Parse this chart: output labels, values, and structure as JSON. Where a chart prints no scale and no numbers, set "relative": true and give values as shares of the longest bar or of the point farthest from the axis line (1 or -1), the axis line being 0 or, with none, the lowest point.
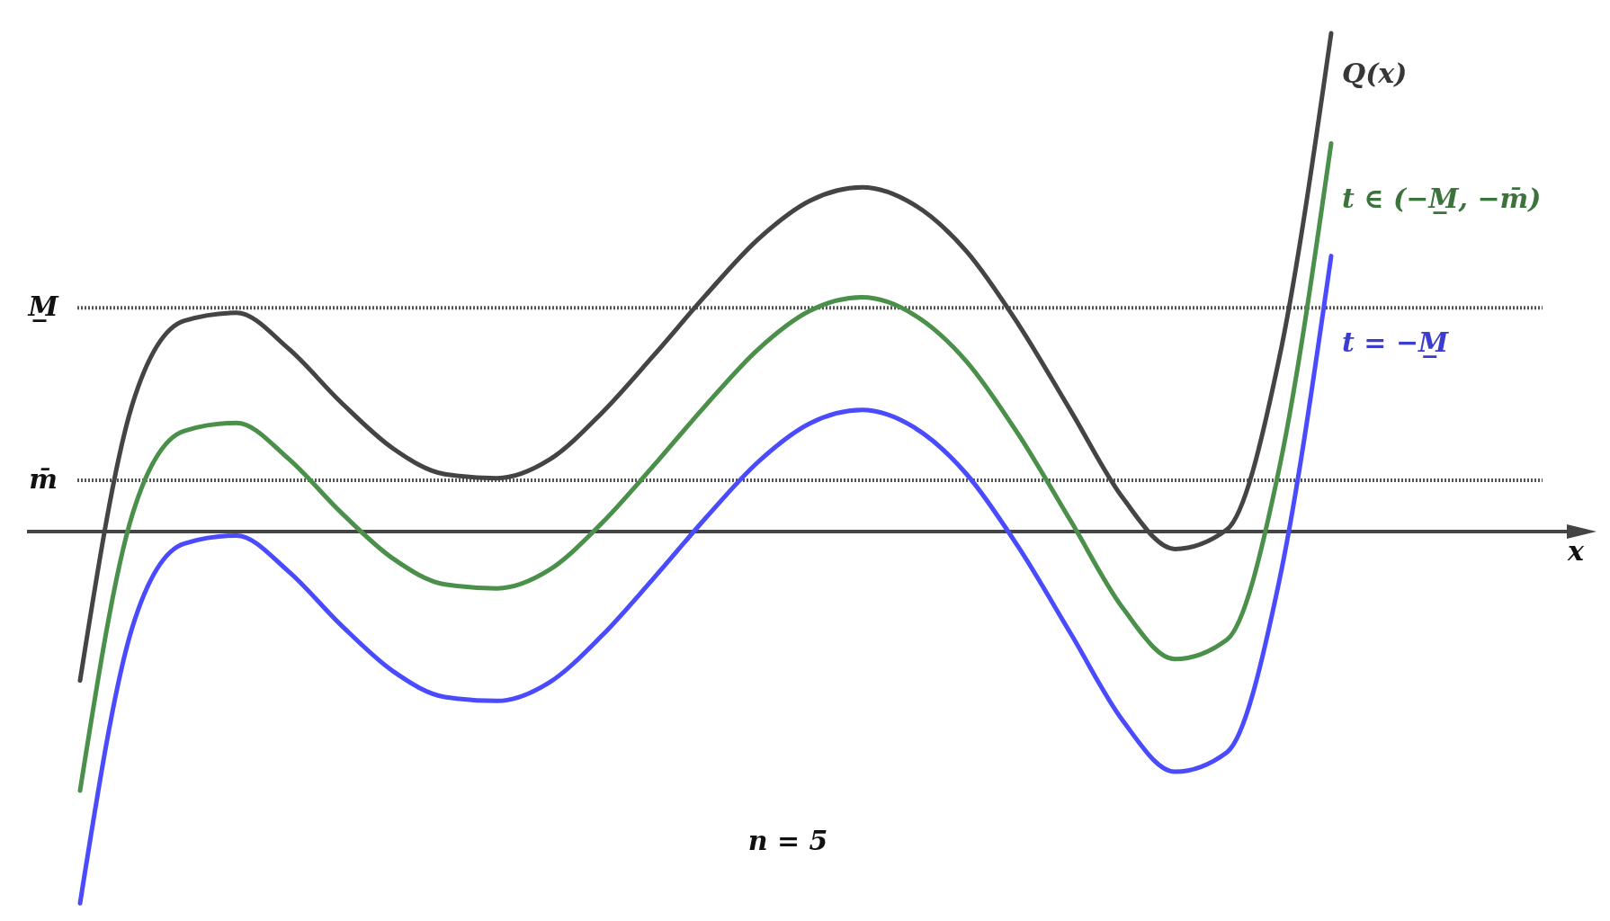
{
  "chart_data": {
    "type": "line",
    "relative": true,
    "line_style": "solid",
    "marker": "none",
    "categories": [
      null,
      null,
      null,
      null,
      null,
      null,
      null,
      null,
      null,
      null,
      null,
      null,
      null,
      null,
      null,
      null,
      null,
      null,
      null,
      null,
      null,
      null,
      null,
      null,
      null
    ],
    "series": [
      {
        "name": "Q(x)",
        "color": "#444444",
        "values": [
          -0.299,
          0.254,
          0.423,
          0.439,
          0.367,
          0.26,
          0.167,
          0.115,
          0.107,
          0.144,
          0.237,
          0.353,
          0.474,
          0.586,
          0.664,
          0.691,
          0.656,
          0.563,
          0.416,
          0.243,
          0.068,
          -0.035,
          0.004,
          0.346,
          1.0
        ]
      },
      {
        "name": "t ∈ (−M̲, −m̄)",
        "color": "#4a8f4a",
        "values": [
          -0.52,
          0.033,
          0.202,
          0.218,
          0.146,
          0.039,
          -0.054,
          -0.106,
          -0.114,
          -0.077,
          0.016,
          0.132,
          0.253,
          0.365,
          0.443,
          0.47,
          0.435,
          0.342,
          0.195,
          0.022,
          -0.153,
          -0.256,
          -0.217,
          0.125,
          0.779
        ]
      },
      {
        "name": "t = −M̲",
        "color": "#4a4aff",
        "values": [
          -0.746,
          -0.193,
          -0.024,
          -0.008,
          -0.08,
          -0.187,
          -0.28,
          -0.332,
          -0.34,
          -0.303,
          -0.21,
          -0.094,
          0.027,
          0.139,
          0.217,
          0.244,
          0.209,
          0.116,
          -0.031,
          -0.204,
          -0.379,
          -0.482,
          -0.443,
          -0.101,
          0.553
        ]
      }
    ],
    "ref_lines": [
      {
        "axis": "y",
        "value": 0.449,
        "label": "M̲",
        "color": "#555555",
        "line_style": "dotted"
      },
      {
        "axis": "y",
        "value": 0.103,
        "label": "m̄",
        "color": "#555555",
        "line_style": "dotted"
      }
    ],
    "annotations": [
      "x",
      "n = 5"
    ]
  }
}
